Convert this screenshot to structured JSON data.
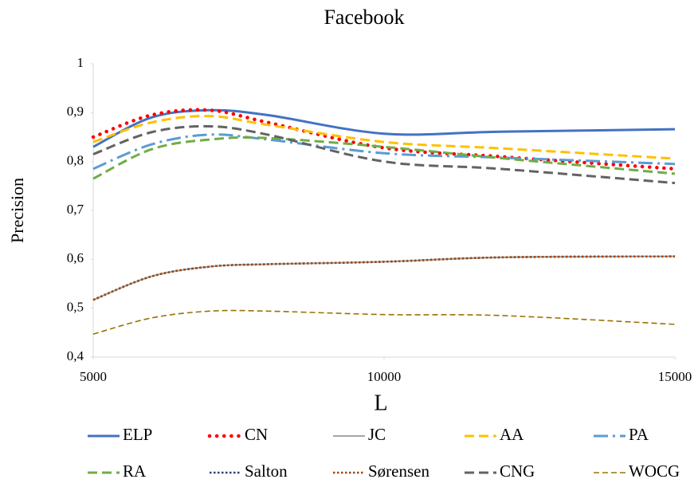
{
  "chart_data": {
    "type": "line",
    "title": "Facebook",
    "x_label": "L",
    "y_label": "Precision",
    "x": [
      5000,
      6000,
      7000,
      8000,
      10000,
      12000,
      15000
    ],
    "xlim": [
      5000,
      15000
    ],
    "xticks": [
      5000,
      10000,
      15000
    ],
    "ylim": [
      0.4,
      1
    ],
    "yticks": [
      {
        "value": 0.4,
        "label": "0,4"
      },
      {
        "value": 0.5,
        "label": "0,5"
      },
      {
        "value": 0.6,
        "label": "0,6"
      },
      {
        "value": 0.7,
        "label": "0,7"
      },
      {
        "value": 0.8,
        "label": "0,8"
      },
      {
        "value": 0.9,
        "label": "0,9"
      },
      1
    ],
    "grid": false,
    "legend": "bottom",
    "series": [
      {
        "name": "ELP",
        "color": "#4472c4",
        "dash": "solid",
        "values": [
          0.83,
          0.89,
          0.905,
          0.895,
          0.857,
          0.861,
          0.866
        ]
      },
      {
        "name": "CN",
        "color": "#ff0000",
        "dash": "dot",
        "values": [
          0.85,
          0.895,
          0.905,
          0.88,
          0.828,
          0.81,
          0.785
        ]
      },
      {
        "name": "JC",
        "color": "#a5a5a5",
        "dash": "solid",
        "values": [
          0.517,
          0.565,
          0.585,
          0.59,
          0.595,
          0.604,
          0.606
        ]
      },
      {
        "name": "AA",
        "color": "#ffc000",
        "dash": "dash",
        "values": [
          0.84,
          0.88,
          0.893,
          0.875,
          0.84,
          0.827,
          0.806
        ]
      },
      {
        "name": "PA",
        "color": "#5b9bd5",
        "dash": "dashdot",
        "values": [
          0.785,
          0.835,
          0.855,
          0.845,
          0.817,
          0.808,
          0.795
        ]
      },
      {
        "name": "RA",
        "color": "#70ad47",
        "dash": "dash",
        "values": [
          0.765,
          0.825,
          0.845,
          0.848,
          0.83,
          0.807,
          0.775
        ]
      },
      {
        "name": "Salton",
        "color": "#264478",
        "dash": "sqdot",
        "values": [
          0.517,
          0.565,
          0.585,
          0.59,
          0.595,
          0.604,
          0.606
        ]
      },
      {
        "name": "Sørensen",
        "color": "#9e480e",
        "dash": "sqdot",
        "values": [
          0.517,
          0.565,
          0.585,
          0.59,
          0.595,
          0.604,
          0.606
        ]
      },
      {
        "name": "CNG",
        "color": "#636363",
        "dash": "dash",
        "values": [
          0.815,
          0.86,
          0.872,
          0.855,
          0.8,
          0.785,
          0.756
        ]
      },
      {
        "name": "WOCG",
        "color": "#997300",
        "dash": "thindash",
        "values": [
          0.447,
          0.48,
          0.494,
          0.494,
          0.487,
          0.485,
          0.467
        ]
      }
    ]
  }
}
